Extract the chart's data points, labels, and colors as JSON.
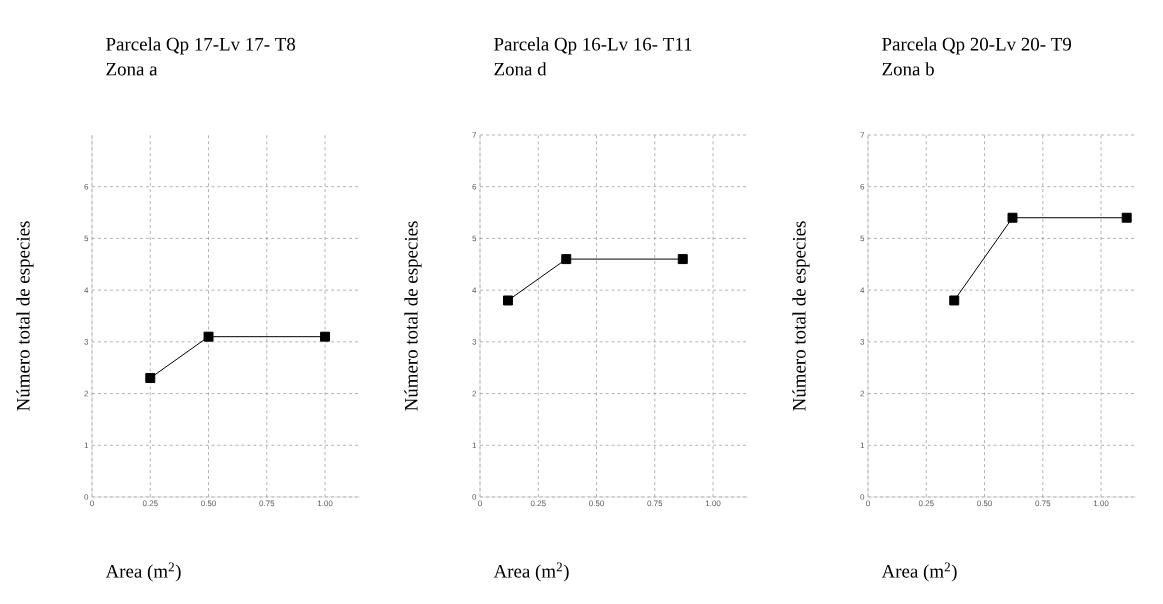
{
  "chart_data": [
    {
      "type": "line",
      "title": "Parcela Qp 17-Lv 17- T8",
      "subtitle": "Zona a",
      "xlabel": "Area (m$^{2}$)",
      "ylabel": "Número total de especies",
      "x": [
        0.25,
        0.5,
        1.0
      ],
      "series": [
        {
          "color": "#000000",
          "values": [
            2.3,
            3.1,
            3.1
          ]
        }
      ],
      "xlim": [
        0,
        1.15
      ],
      "ylim": [
        0,
        7
      ],
      "xticks": [
        0,
        {
          "value": 0.25,
          "label": "0.25"
        },
        {
          "value": 0.5,
          "label": "0.50"
        },
        {
          "value": 0.75,
          "label": "0.75"
        },
        {
          "value": 1.0,
          "label": "1.00"
        }
      ],
      "yticks": [
        0,
        1,
        2,
        3,
        4,
        5,
        6
      ],
      "grid": true,
      "marker": "square",
      "line_style": "solid"
    },
    {
      "type": "line",
      "title": "Parcela Qp 16-Lv 16- T11",
      "subtitle": "Zona d",
      "xlabel": "Area (m$^{2}$)",
      "ylabel": "Número total de especies",
      "x": [
        0.12,
        0.37,
        0.87
      ],
      "series": [
        {
          "color": "#000000",
          "values": [
            3.8,
            4.6,
            4.6
          ]
        }
      ],
      "xlim": [
        0,
        1.15
      ],
      "ylim": [
        0,
        7
      ],
      "xticks": [
        0,
        {
          "value": 0.25,
          "label": "0.25"
        },
        {
          "value": 0.5,
          "label": "0.50"
        },
        {
          "value": 0.75,
          "label": "0.75"
        },
        {
          "value": 1.0,
          "label": "1.00"
        }
      ],
      "yticks": [
        0,
        1,
        2,
        3,
        4,
        5,
        6,
        7
      ],
      "grid": true,
      "marker": "square",
      "line_style": "solid"
    },
    {
      "type": "line",
      "title": "Parcela Qp 20-Lv 20- T9",
      "subtitle": "Zona b",
      "xlabel": "Area (m$^{2}$)",
      "ylabel": "Número total de especies",
      "x": [
        0.37,
        0.62,
        1.11
      ],
      "series": [
        {
          "color": "#000000",
          "values": [
            3.8,
            5.4,
            5.4
          ]
        }
      ],
      "xlim": [
        0,
        1.15
      ],
      "ylim": [
        0,
        7
      ],
      "xticks": [
        0,
        {
          "value": 0.25,
          "label": "0.25"
        },
        {
          "value": 0.5,
          "label": "0.50"
        },
        {
          "value": 0.75,
          "label": "0.75"
        },
        {
          "value": 1.0,
          "label": "1.00"
        }
      ],
      "yticks": [
        0,
        1,
        2,
        3,
        4,
        5,
        6,
        7
      ],
      "grid": true,
      "marker": "square",
      "line_style": "solid"
    }
  ]
}
